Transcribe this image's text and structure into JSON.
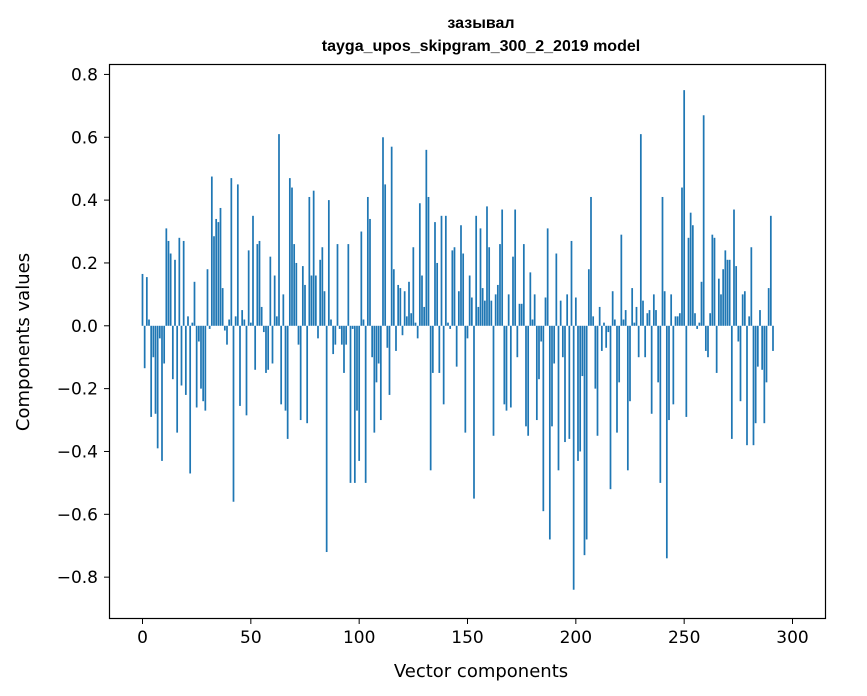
{
  "chart_data": {
    "type": "bar",
    "title": "зазывал",
    "subtitle": "tayga_upos_skipgram_300_2_2019 model",
    "xlabel": "Vector components",
    "ylabel": "Components values",
    "xlim": [
      -15,
      315
    ],
    "ylim": [
      -0.93,
      0.83
    ],
    "xticks": [
      0,
      50,
      100,
      150,
      200,
      250,
      300
    ],
    "xtick_labels": [
      "0",
      "50",
      "100",
      "150",
      "200",
      "250",
      "300"
    ],
    "yticks": [
      -0.8,
      -0.6,
      -0.4,
      -0.2,
      0.0,
      0.2,
      0.4,
      0.6,
      0.8
    ],
    "ytick_labels": [
      "−0.8",
      "−0.6",
      "−0.4",
      "−0.2",
      "0.0",
      "0.2",
      "0.4",
      "0.6",
      "0.8"
    ],
    "bar_color": "#1f77b4",
    "grid": false,
    "values": [
      0.165,
      -0.135,
      0.155,
      0.02,
      -0.29,
      -0.1,
      -0.28,
      -0.39,
      -0.04,
      -0.43,
      -0.12,
      0.31,
      0.27,
      0.23,
      -0.17,
      0.21,
      -0.34,
      0.28,
      -0.19,
      0.27,
      -0.22,
      0.03,
      -0.47,
      0.01,
      0.14,
      -0.26,
      -0.05,
      -0.2,
      -0.24,
      -0.27,
      0.18,
      -0.01,
      0.475,
      0.285,
      0.34,
      0.33,
      0.375,
      0.12,
      -0.015,
      -0.06,
      0.02,
      0.47,
      -0.56,
      0.03,
      0.45,
      -0.255,
      0.05,
      0.02,
      -0.285,
      0.24,
      0.01,
      0.35,
      -0.14,
      0.26,
      0.27,
      0.06,
      -0.02,
      -0.15,
      -0.14,
      0.22,
      -0.12,
      0.16,
      0.03,
      0.61,
      -0.25,
      0.1,
      -0.27,
      -0.36,
      0.47,
      0.44,
      0.26,
      0.2,
      -0.06,
      -0.3,
      0.19,
      0.13,
      -0.31,
      0.41,
      0.16,
      0.43,
      0.16,
      -0.04,
      0.21,
      0.25,
      0.11,
      -0.72,
      0.4,
      0.02,
      -0.09,
      -0.06,
      0.26,
      -0.01,
      -0.06,
      -0.15,
      -0.06,
      0.26,
      -0.5,
      -0.01,
      -0.5,
      -0.27,
      -0.43,
      0.3,
      0.02,
      -0.5,
      0.41,
      0.34,
      -0.1,
      -0.34,
      -0.18,
      -0.12,
      -0.3,
      0.6,
      0.45,
      -0.07,
      -0.22,
      0.57,
      0.18,
      -0.08,
      0.13,
      0.12,
      -0.03,
      0.11,
      0.03,
      0.14,
      0.04,
      0.25,
      0.01,
      -0.04,
      0.39,
      0.16,
      0.06,
      0.56,
      0.41,
      -0.46,
      -0.15,
      0.33,
      0.2,
      -0.15,
      0.35,
      -0.25,
      0.35,
      0.01,
      -0.01,
      0.24,
      0.25,
      -0.13,
      0.11,
      0.32,
      0.23,
      -0.34,
      -0.04,
      0.16,
      0.09,
      -0.55,
      0.35,
      0.06,
      0.31,
      0.12,
      0.08,
      0.38,
      0.25,
      0.08,
      -0.35,
      0.1,
      0.13,
      0.26,
      0.37,
      -0.25,
      -0.27,
      0.1,
      -0.26,
      0.22,
      0.37,
      -0.1,
      0.07,
      0.07,
      0.26,
      -0.32,
      -0.35,
      0.17,
      0.02,
      0.1,
      -0.3,
      -0.17,
      -0.05,
      -0.59,
      0.09,
      0.31,
      -0.68,
      -0.32,
      -0.12,
      0.23,
      -0.46,
      0.08,
      -0.1,
      -0.37,
      0.1,
      -0.36,
      0.27,
      -0.84,
      0.09,
      -0.43,
      -0.4,
      -0.16,
      -0.73,
      -0.68,
      0.18,
      0.41,
      0.03,
      -0.2,
      -0.35,
      0.06,
      -0.08,
      0.01,
      -0.07,
      -0.02,
      -0.52,
      0.11,
      0.02,
      -0.34,
      -0.18,
      0.29,
      0.02,
      0.05,
      -0.46,
      -0.24,
      0.12,
      0.01,
      0.06,
      -0.1,
      0.61,
      0.08,
      -0.1,
      0.04,
      0.05,
      -0.28,
      0.1,
      0.05,
      -0.18,
      -0.5,
      0.41,
      0.11,
      -0.74,
      -0.3,
      0.1,
      -0.25,
      0.03,
      0.03,
      0.04,
      0.44,
      0.75,
      -0.29,
      0.28,
      0.36,
      0.32,
      0.04,
      -0.01,
      0.01,
      0.14,
      0.67,
      -0.08,
      -0.1,
      0.04,
      0.29,
      0.28,
      -0.15,
      0.15,
      0.1,
      0.18,
      0.24,
      0.21,
      0.21,
      -0.36,
      0.37,
      0.19,
      -0.05,
      -0.24,
      0.1,
      0.11,
      -0.38,
      0.03,
      0.25,
      -0.38,
      -0.31,
      -0.13,
      0.05,
      -0.14,
      -0.31,
      -0.18,
      0.12,
      0.35,
      -0.08
    ]
  }
}
